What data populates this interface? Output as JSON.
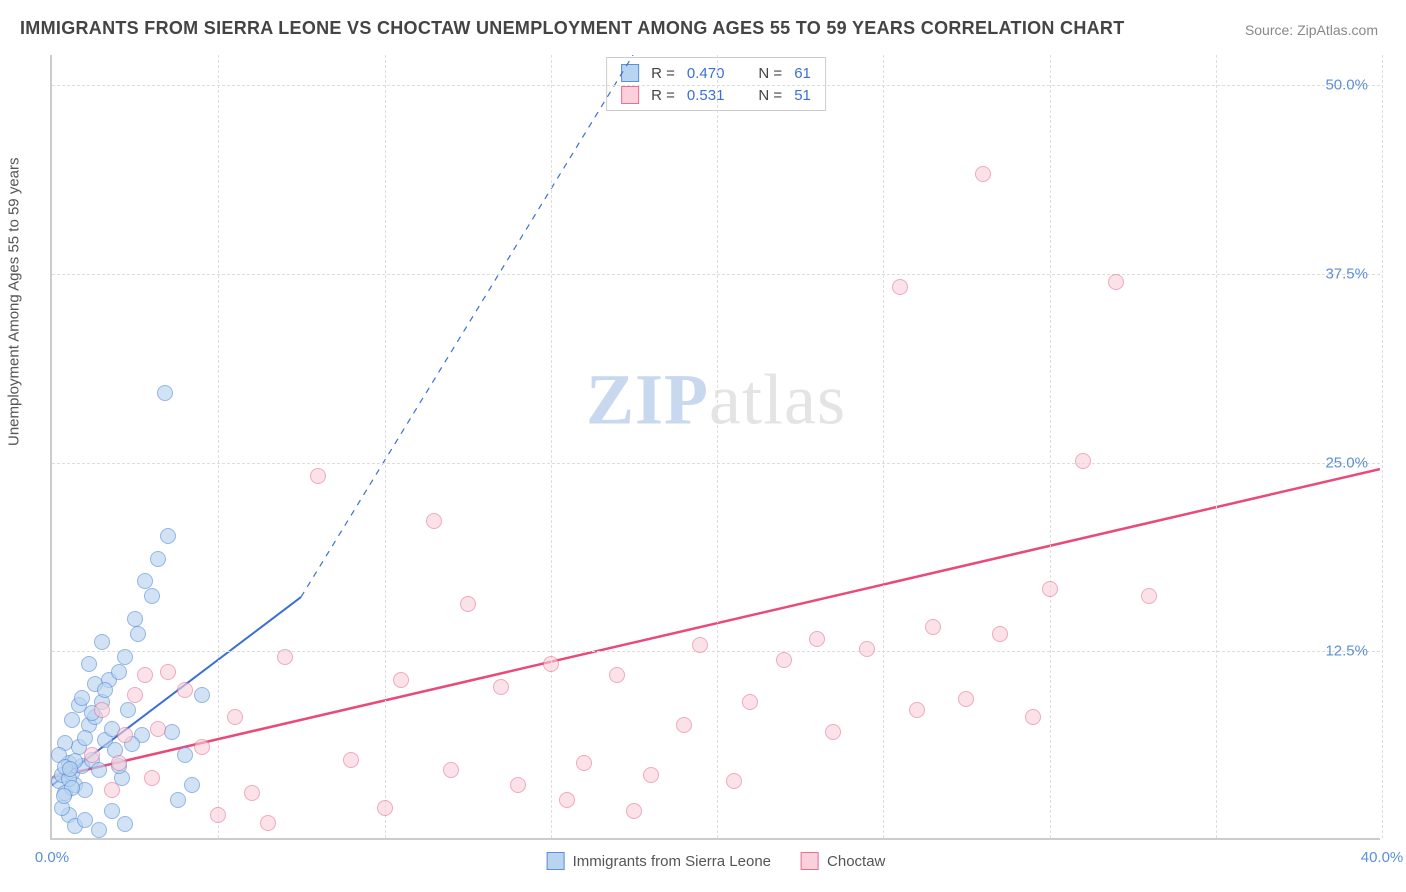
{
  "title": "IMMIGRANTS FROM SIERRA LEONE VS CHOCTAW UNEMPLOYMENT AMONG AGES 55 TO 59 YEARS CORRELATION CHART",
  "source_label": "Source: ",
  "source_name": "ZipAtlas.com",
  "y_axis_title": "Unemployment Among Ages 55 to 59 years",
  "watermark_a": "ZIP",
  "watermark_b": "atlas",
  "chart": {
    "type": "scatter",
    "background_color": "#ffffff",
    "grid_color": "#dddddd",
    "axis_color": "#cccccc",
    "tick_label_color": "#5b8fd6",
    "title_color": "#444444",
    "title_fontsize": 18,
    "label_fontsize": 15,
    "xlim": [
      0,
      40
    ],
    "ylim": [
      0,
      52
    ],
    "xticks": [
      0,
      5,
      10,
      15,
      20,
      25,
      30,
      35,
      40
    ],
    "xtick_labels": {
      "0": "0.0%",
      "40": "40.0%"
    },
    "yticks": [
      12.5,
      25,
      37.5,
      50
    ],
    "ytick_labels": {
      "12.5": "12.5%",
      "25": "25.0%",
      "37.5": "37.5%",
      "50": "50.0%"
    },
    "marker_radius": 8,
    "series": [
      {
        "name": "Immigrants from Sierra Leone",
        "fill": "#b9d4f1",
        "stroke": "#5b8fd6",
        "fill_opacity": 0.65,
        "r_label": "R =",
        "r_value": "0.470",
        "n_label": "N =",
        "n_value": "61",
        "trend": {
          "x1": 0,
          "y1": 3.5,
          "x2": 7.5,
          "y2": 16,
          "dash_to_x": 17.5,
          "dash_to_y": 52,
          "stroke": "#3b6fd6",
          "width": 2
        },
        "points": [
          [
            0.2,
            3.8
          ],
          [
            0.3,
            4.2
          ],
          [
            0.4,
            3.0
          ],
          [
            0.5,
            5.0
          ],
          [
            0.6,
            4.3
          ],
          [
            0.7,
            3.5
          ],
          [
            0.8,
            6.0
          ],
          [
            0.9,
            4.8
          ],
          [
            1.0,
            3.2
          ],
          [
            1.1,
            7.5
          ],
          [
            1.2,
            5.2
          ],
          [
            1.3,
            8.0
          ],
          [
            1.4,
            4.5
          ],
          [
            1.5,
            9.0
          ],
          [
            1.6,
            6.5
          ],
          [
            1.7,
            10.5
          ],
          [
            1.8,
            7.2
          ],
          [
            1.9,
            5.8
          ],
          [
            2.0,
            11.0
          ],
          [
            2.1,
            4.0
          ],
          [
            2.2,
            12.0
          ],
          [
            2.3,
            8.5
          ],
          [
            2.5,
            14.5
          ],
          [
            2.6,
            13.5
          ],
          [
            2.7,
            6.8
          ],
          [
            2.8,
            17.0
          ],
          [
            3.0,
            16.0
          ],
          [
            3.2,
            18.5
          ],
          [
            3.5,
            20.0
          ],
          [
            3.6,
            7.0
          ],
          [
            3.8,
            2.5
          ],
          [
            4.0,
            5.5
          ],
          [
            4.2,
            3.5
          ],
          [
            4.5,
            9.5
          ],
          [
            3.4,
            29.5
          ],
          [
            0.5,
            1.5
          ],
          [
            0.7,
            0.8
          ],
          [
            1.0,
            1.2
          ],
          [
            1.4,
            0.5
          ],
          [
            1.8,
            1.8
          ],
          [
            2.2,
            0.9
          ],
          [
            0.3,
            2.0
          ],
          [
            0.8,
            8.8
          ],
          [
            1.1,
            11.5
          ],
          [
            1.5,
            13.0
          ],
          [
            0.4,
            6.3
          ],
          [
            0.6,
            7.8
          ],
          [
            0.9,
            9.3
          ],
          [
            1.3,
            10.2
          ],
          [
            0.5,
            3.9
          ],
          [
            0.7,
            5.1
          ],
          [
            1.0,
            6.6
          ],
          [
            1.2,
            8.3
          ],
          [
            1.6,
            9.8
          ],
          [
            2.0,
            4.8
          ],
          [
            2.4,
            6.2
          ],
          [
            0.2,
            5.5
          ],
          [
            0.4,
            4.7
          ],
          [
            0.6,
            3.3
          ],
          [
            0.35,
            2.8
          ],
          [
            0.55,
            4.6
          ]
        ]
      },
      {
        "name": "Choctaw",
        "fill": "#f9d0db",
        "stroke": "#e86f94",
        "fill_opacity": 0.6,
        "r_label": "R =",
        "r_value": "0.531",
        "n_label": "N =",
        "n_value": "51",
        "trend": {
          "x1": 0,
          "y1": 4.0,
          "x2": 40,
          "y2": 24.5,
          "stroke": "#e84a7a",
          "width": 2.5
        },
        "points": [
          [
            1.5,
            8.5
          ],
          [
            2.0,
            5.0
          ],
          [
            2.5,
            9.5
          ],
          [
            3.0,
            4.0
          ],
          [
            3.5,
            11.0
          ],
          [
            4.5,
            6.0
          ],
          [
            5.0,
            1.5
          ],
          [
            5.5,
            8.0
          ],
          [
            6.0,
            3.0
          ],
          [
            6.5,
            1.0
          ],
          [
            7.0,
            12.0
          ],
          [
            8.0,
            24.0
          ],
          [
            9.0,
            5.2
          ],
          [
            10.0,
            2.0
          ],
          [
            10.5,
            10.5
          ],
          [
            11.5,
            21.0
          ],
          [
            12.0,
            4.5
          ],
          [
            12.5,
            15.5
          ],
          [
            13.5,
            10.0
          ],
          [
            14.0,
            3.5
          ],
          [
            15.0,
            11.5
          ],
          [
            15.5,
            2.5
          ],
          [
            16.0,
            5.0
          ],
          [
            17.0,
            10.8
          ],
          [
            17.5,
            1.8
          ],
          [
            18.0,
            4.2
          ],
          [
            19.0,
            7.5
          ],
          [
            19.5,
            12.8
          ],
          [
            20.5,
            3.8
          ],
          [
            21.0,
            9.0
          ],
          [
            22.0,
            11.8
          ],
          [
            23.0,
            13.2
          ],
          [
            23.5,
            7.0
          ],
          [
            24.5,
            12.5
          ],
          [
            25.5,
            36.5
          ],
          [
            26.0,
            8.5
          ],
          [
            26.5,
            14.0
          ],
          [
            27.5,
            9.2
          ],
          [
            28.0,
            44.0
          ],
          [
            28.5,
            13.5
          ],
          [
            29.5,
            8.0
          ],
          [
            30.0,
            16.5
          ],
          [
            31.0,
            25.0
          ],
          [
            32.0,
            36.8
          ],
          [
            33.0,
            16.0
          ],
          [
            2.2,
            6.8
          ],
          [
            3.2,
            7.2
          ],
          [
            4.0,
            9.8
          ],
          [
            1.8,
            3.2
          ],
          [
            2.8,
            10.8
          ],
          [
            1.2,
            5.5
          ]
        ]
      }
    ]
  }
}
